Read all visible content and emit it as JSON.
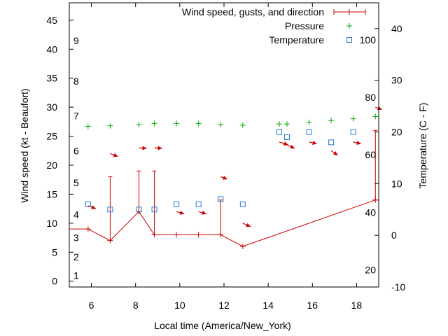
{
  "chart_data": {
    "type": "line",
    "xlabel": "Local time (America/New_York)",
    "ylabel_left": "Wind speed (kt - Beaufort)",
    "ylabel_right": "Temperature (C - F)",
    "x_range": [
      5,
      19
    ],
    "y_left_range": [
      -1,
      48
    ],
    "y_right_range": [
      -10,
      45
    ],
    "x_ticks": [
      6,
      8,
      10,
      12,
      14,
      16,
      18
    ],
    "y_left_ticks": [
      0,
      5,
      10,
      15,
      20,
      25,
      30,
      35,
      40,
      45
    ],
    "y_right_ticks": [
      -10,
      0,
      10,
      20,
      30,
      40
    ],
    "beaufort_labels": [
      {
        "text": "1",
        "y": 1
      },
      {
        "text": "2",
        "y": 4.2
      },
      {
        "text": "3",
        "y": 7.5
      },
      {
        "text": "4",
        "y": 11.5
      },
      {
        "text": "5",
        "y": 17
      },
      {
        "text": "6",
        "y": 22.5
      },
      {
        "text": "7",
        "y": 28.5
      },
      {
        "text": "8",
        "y": 34.5
      },
      {
        "text": "9",
        "y": 41.5
      }
    ],
    "fahrenheit_labels": [
      {
        "text": "20",
        "y_c": -6.7
      },
      {
        "text": "40",
        "y_c": 4.4
      },
      {
        "text": "60",
        "y_c": 15.6
      },
      {
        "text": "80",
        "y_c": 26.7
      },
      {
        "text": "100",
        "y_c": 37.8
      }
    ],
    "legend": [
      {
        "label": "Wind speed, gusts, and direction",
        "color": "#cc0000",
        "marker": "line-plus"
      },
      {
        "label": "Pressure",
        "color": "#00aa00",
        "marker": "plus"
      },
      {
        "label": "Temperature",
        "color": "#1f77d4",
        "marker": "square"
      }
    ],
    "series": [
      {
        "name": "Wind speed, gusts, and direction",
        "color": "#cc0000",
        "x": [
          5.0,
          5.85,
          6.85,
          8.15,
          8.85,
          9.85,
          10.85,
          11.85,
          12.85,
          18.85,
          19.0
        ],
        "y": [
          9,
          9,
          7,
          12,
          8,
          8,
          8,
          8,
          6,
          14,
          14
        ]
      },
      {
        "name": "Gusts",
        "color": "#cc0000",
        "points": [
          {
            "x": 6.85,
            "base": 7,
            "gust": 18
          },
          {
            "x": 8.15,
            "base": 12,
            "gust": 19
          },
          {
            "x": 8.85,
            "base": 8,
            "gust": 19
          },
          {
            "x": 11.85,
            "base": 8,
            "gust": 14
          },
          {
            "x": 18.85,
            "base": 14,
            "gust": 26
          }
        ]
      },
      {
        "name": "Direction",
        "color": "#cc0000",
        "arrows": [
          {
            "x": 5.85,
            "y": 13,
            "dx": 0.35,
            "dy": -0.5
          },
          {
            "x": 6.85,
            "y": 22,
            "dx": 0.35,
            "dy": -0.5
          },
          {
            "x": 8.15,
            "y": 23,
            "dx": 0.35,
            "dy": -0.1
          },
          {
            "x": 8.85,
            "y": 23,
            "dx": 0.35,
            "dy": -0.1
          },
          {
            "x": 9.85,
            "y": 12,
            "dx": 0.35,
            "dy": -0.4
          },
          {
            "x": 10.85,
            "y": 12,
            "dx": 0.35,
            "dy": -0.4
          },
          {
            "x": 11.85,
            "y": 18,
            "dx": 0.3,
            "dy": -0.4
          },
          {
            "x": 12.85,
            "y": 10,
            "dx": 0.35,
            "dy": -0.6
          },
          {
            "x": 14.5,
            "y": 24,
            "dx": 0.4,
            "dy": -0.5
          },
          {
            "x": 14.85,
            "y": 23.5,
            "dx": 0.35,
            "dy": -0.6
          },
          {
            "x": 15.85,
            "y": 24,
            "dx": 0.35,
            "dy": -0.3
          },
          {
            "x": 16.85,
            "y": 22.5,
            "dx": 0.3,
            "dy": -0.8
          },
          {
            "x": 17.85,
            "y": 24,
            "dx": 0.35,
            "dy": -0.3
          },
          {
            "x": 18.85,
            "y": 30,
            "dx": 0.3,
            "dy": -0.4
          }
        ]
      },
      {
        "name": "Pressure",
        "color": "#00aa00",
        "x": [
          5.85,
          6.85,
          8.15,
          8.85,
          9.85,
          10.85,
          11.85,
          12.85,
          14.5,
          14.85,
          15.85,
          16.85,
          17.85,
          18.85
        ],
        "y": [
          26.7,
          26.8,
          27.0,
          27.2,
          27.2,
          27.2,
          27.0,
          26.9,
          27.1,
          27.1,
          27.4,
          27.7,
          28.0,
          28.4
        ]
      },
      {
        "name": "Temperature",
        "color": "#1f77d4",
        "x": [
          5.85,
          6.85,
          8.15,
          8.85,
          9.85,
          10.85,
          11.85,
          12.85,
          14.5,
          14.85,
          15.85,
          16.85,
          17.85
        ],
        "y": [
          6,
          5,
          5,
          5,
          6,
          6,
          7,
          6,
          20,
          19,
          20,
          18,
          20
        ]
      }
    ]
  }
}
